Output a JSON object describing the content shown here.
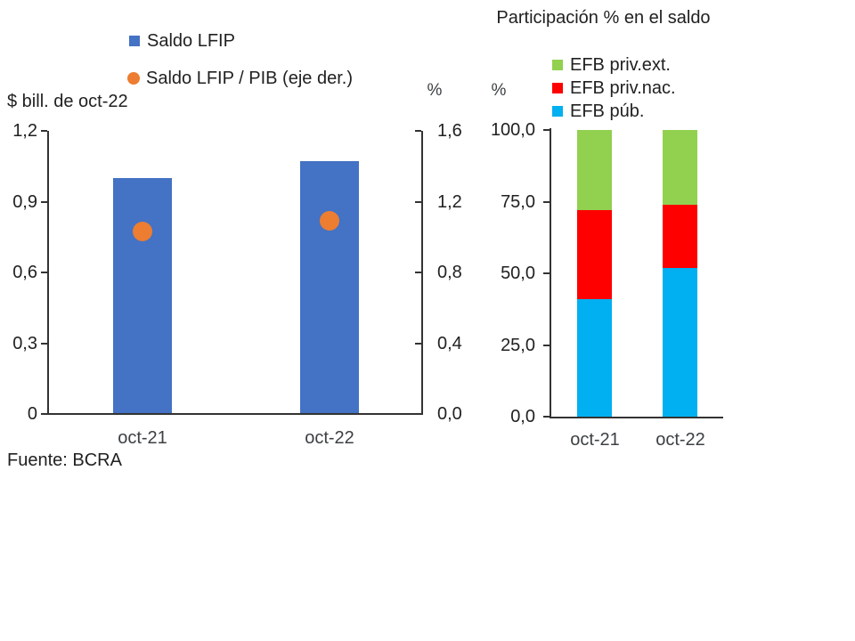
{
  "source_note": "Fuente: BCRA",
  "colors": {
    "bar_blue": "#4472C4",
    "dot_orange": "#ED7D31",
    "efb_pub_cyan": "#00B0F0",
    "efb_priv_nac_red": "#FF0000",
    "efb_priv_ext_green": "#92D050",
    "axis": "#333333"
  },
  "chart_data": [
    {
      "type": "bar",
      "title": "",
      "categories": [
        "oct-21",
        "oct-22"
      ],
      "series": [
        {
          "name": "Saldo LFIP",
          "plot": "bar",
          "axis": "left",
          "color": "#4472C4",
          "values": [
            1.0,
            1.07
          ]
        },
        {
          "name": "Saldo LFIP / PIB (eje der.)",
          "plot": "scatter",
          "axis": "right",
          "color": "#ED7D31",
          "values": [
            1.03,
            1.09
          ]
        }
      ],
      "ylabel_left": "$ bill. de oct-22",
      "ylim_left": [
        0,
        1.2
      ],
      "yticks_left": [
        "1,2",
        "0,9",
        "0,6",
        "0,3",
        "0"
      ],
      "ylabel_right": "%",
      "ylim_right": [
        0,
        1.6
      ],
      "yticks_right": [
        "1,6",
        "1,2",
        "0,8",
        "0,4",
        "0,0"
      ],
      "grid": false,
      "legend_position": "top"
    },
    {
      "type": "stacked-bar",
      "title": "Participación % en el saldo",
      "categories": [
        "oct-21",
        "oct-22"
      ],
      "series": [
        {
          "name": "EFB púb.",
          "color": "#00B0F0",
          "values": [
            41.0,
            52.0
          ]
        },
        {
          "name": "EFB priv.nac.",
          "color": "#FF0000",
          "values": [
            31.0,
            22.0
          ]
        },
        {
          "name": "EFB priv.ext.",
          "color": "#92D050",
          "values": [
            28.0,
            26.0
          ]
        }
      ],
      "stack_order": "bottom-to-top",
      "ylabel": "%",
      "ylim": [
        0,
        100
      ],
      "yticks": [
        "100,0",
        "75,0",
        "50,0",
        "25,0",
        "0,0"
      ],
      "grid": false,
      "legend_position": "top"
    }
  ]
}
